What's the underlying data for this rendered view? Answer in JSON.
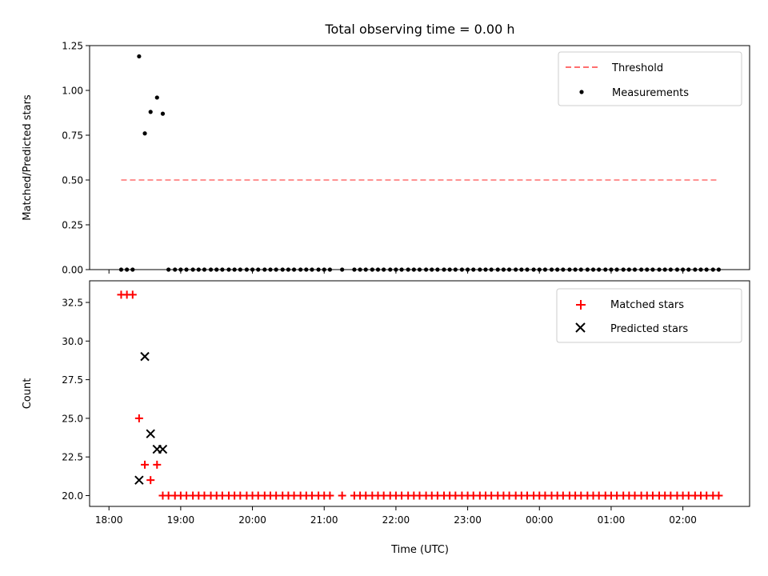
{
  "chart_data": {
    "type": "scatter",
    "title": "Total observing time = 0.00 h",
    "xlabel": "Time (UTC)",
    "x_tick_labels": [
      "18:00",
      "19:00",
      "20:00",
      "21:00",
      "22:00",
      "23:00",
      "00:00",
      "01:00",
      "02:00"
    ],
    "x_range_hours": [
      17.73,
      26.93
    ],
    "panels": [
      {
        "ylabel": "Matched/Predicted stars",
        "ylim": [
          0,
          1.25
        ],
        "y_tick_labels": [
          "0.00",
          "0.25",
          "0.50",
          "0.75",
          "1.00",
          "1.25"
        ],
        "legend_position": "top-right",
        "series": [
          {
            "name": "Threshold",
            "kind": "dashed-line",
            "color": "#ff6f6f",
            "x": [
              18.17,
              26.5
            ],
            "y": [
              0.5,
              0.5
            ]
          },
          {
            "name": "Measurements",
            "kind": "dot",
            "color": "#000000",
            "x": [
              18.17,
              18.25,
              18.33,
              18.42,
              18.5,
              18.58,
              18.67,
              18.75,
              18.83,
              18.92,
              19.0,
              19.08,
              19.17,
              19.25,
              19.33,
              19.42,
              19.5,
              19.58,
              19.67,
              19.75,
              19.83,
              19.92,
              20.0,
              20.08,
              20.17,
              20.25,
              20.33,
              20.42,
              20.5,
              20.58,
              20.67,
              20.75,
              20.83,
              20.92,
              21.0,
              21.08,
              21.25,
              21.42,
              21.5,
              21.58,
              21.67,
              21.75,
              21.83,
              21.92,
              22.0,
              22.08,
              22.17,
              22.25,
              22.33,
              22.42,
              22.5,
              22.58,
              22.67,
              22.75,
              22.83,
              22.92,
              23.0,
              23.08,
              23.17,
              23.25,
              23.33,
              23.42,
              23.5,
              23.58,
              23.67,
              23.75,
              23.83,
              23.92,
              24.0,
              24.08,
              24.17,
              24.25,
              24.33,
              24.42,
              24.5,
              24.58,
              24.67,
              24.75,
              24.83,
              24.92,
              25.0,
              25.08,
              25.17,
              25.25,
              25.33,
              25.42,
              25.5,
              25.58,
              25.67,
              25.75,
              25.83,
              25.92,
              26.0,
              26.08,
              26.17,
              26.25,
              26.33,
              26.42,
              26.5
            ],
            "y": [
              0,
              0,
              0,
              1.19,
              0.76,
              0.88,
              0.96,
              0.87,
              0,
              0,
              0,
              0,
              0,
              0,
              0,
              0,
              0,
              0,
              0,
              0,
              0,
              0,
              0,
              0,
              0,
              0,
              0,
              0,
              0,
              0,
              0,
              0,
              0,
              0,
              0,
              0,
              0,
              0,
              0,
              0,
              0,
              0,
              0,
              0,
              0,
              0,
              0,
              0,
              0,
              0,
              0,
              0,
              0,
              0,
              0,
              0,
              0,
              0,
              0,
              0,
              0,
              0,
              0,
              0,
              0,
              0,
              0,
              0,
              0,
              0,
              0,
              0,
              0,
              0,
              0,
              0,
              0,
              0,
              0,
              0,
              0,
              0,
              0,
              0,
              0,
              0,
              0,
              0,
              0,
              0,
              0,
              0,
              0,
              0,
              0,
              0,
              0,
              0,
              0
            ]
          }
        ]
      },
      {
        "ylabel": "Count",
        "ylim": [
          19.3,
          33.9
        ],
        "y_tick_labels": [
          "20.0",
          "22.5",
          "25.0",
          "27.5",
          "30.0",
          "32.5"
        ],
        "legend_position": "top-right",
        "series": [
          {
            "name": "Matched stars",
            "kind": "plus",
            "color": "#ff0000",
            "x": [
              18.17,
              18.25,
              18.33,
              18.42,
              18.5,
              18.58,
              18.67,
              18.75,
              18.83,
              18.92,
              19.0,
              19.08,
              19.17,
              19.25,
              19.33,
              19.42,
              19.5,
              19.58,
              19.67,
              19.75,
              19.83,
              19.92,
              20.0,
              20.08,
              20.17,
              20.25,
              20.33,
              20.42,
              20.5,
              20.58,
              20.67,
              20.75,
              20.83,
              20.92,
              21.0,
              21.08,
              21.25,
              21.42,
              21.5,
              21.58,
              21.67,
              21.75,
              21.83,
              21.92,
              22.0,
              22.08,
              22.17,
              22.25,
              22.33,
              22.42,
              22.5,
              22.58,
              22.67,
              22.75,
              22.83,
              22.92,
              23.0,
              23.08,
              23.17,
              23.25,
              23.33,
              23.42,
              23.5,
              23.58,
              23.67,
              23.75,
              23.83,
              23.92,
              24.0,
              24.08,
              24.17,
              24.25,
              24.33,
              24.42,
              24.5,
              24.58,
              24.67,
              24.75,
              24.83,
              24.92,
              25.0,
              25.08,
              25.17,
              25.25,
              25.33,
              25.42,
              25.5,
              25.58,
              25.67,
              25.75,
              25.83,
              25.92,
              26.0,
              26.08,
              26.17,
              26.25,
              26.33,
              26.42,
              26.5
            ],
            "y": [
              33,
              33,
              33,
              25,
              22,
              21,
              22,
              20,
              20,
              20,
              20,
              20,
              20,
              20,
              20,
              20,
              20,
              20,
              20,
              20,
              20,
              20,
              20,
              20,
              20,
              20,
              20,
              20,
              20,
              20,
              20,
              20,
              20,
              20,
              20,
              20,
              20,
              20,
              20,
              20,
              20,
              20,
              20,
              20,
              20,
              20,
              20,
              20,
              20,
              20,
              20,
              20,
              20,
              20,
              20,
              20,
              20,
              20,
              20,
              20,
              20,
              20,
              20,
              20,
              20,
              20,
              20,
              20,
              20,
              20,
              20,
              20,
              20,
              20,
              20,
              20,
              20,
              20,
              20,
              20,
              20,
              20,
              20,
              20,
              20,
              20,
              20,
              20,
              20,
              20,
              20,
              20,
              20,
              20,
              20,
              20,
              20,
              20,
              20
            ]
          },
          {
            "name": "Predicted stars",
            "kind": "x",
            "color": "#000000",
            "x": [
              18.42,
              18.5,
              18.58,
              18.67,
              18.75
            ],
            "y": [
              21,
              29,
              24,
              23,
              23
            ]
          }
        ]
      }
    ]
  }
}
